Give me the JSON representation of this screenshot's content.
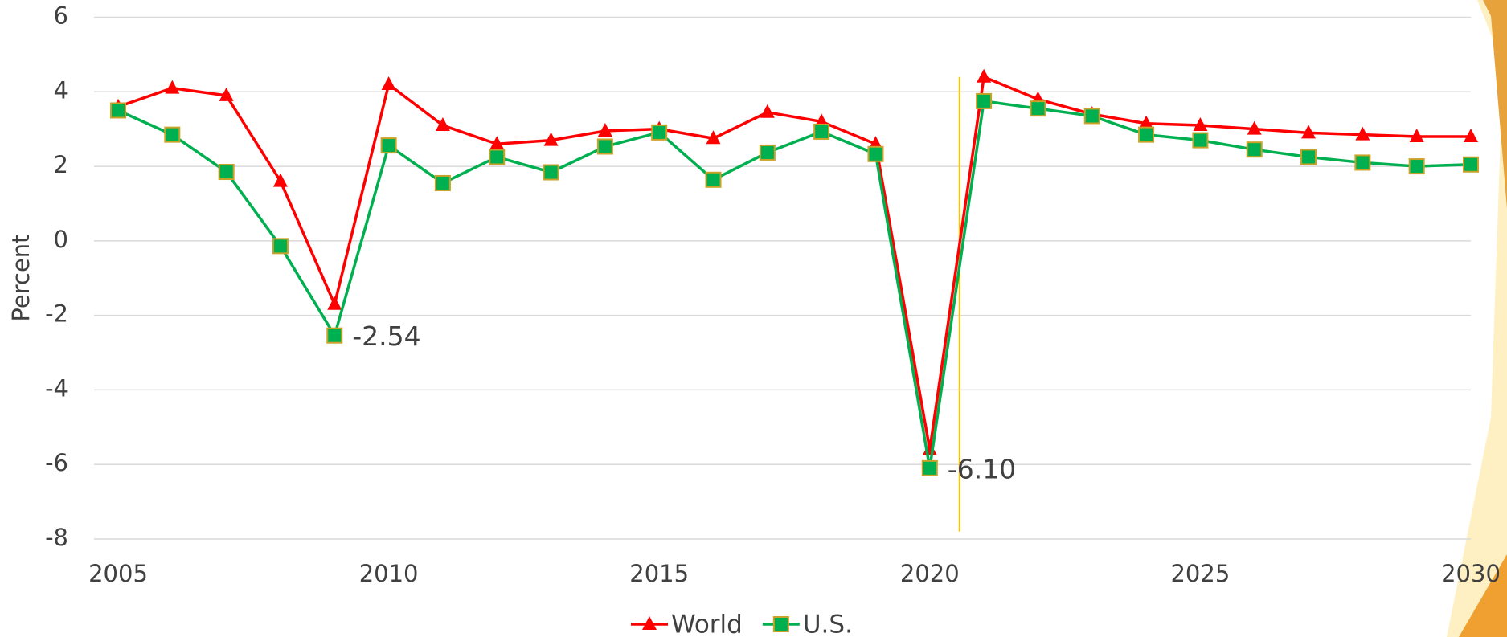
{
  "chart_data": {
    "type": "line",
    "y_label": "Percent",
    "x": [
      2005,
      2006,
      2007,
      2008,
      2009,
      2010,
      2011,
      2012,
      2013,
      2014,
      2015,
      2016,
      2017,
      2018,
      2019,
      2020,
      2021,
      2022,
      2023,
      2024,
      2025,
      2026,
      2027,
      2028,
      2029,
      2030
    ],
    "series": [
      {
        "name": "World",
        "color": "#ff0000",
        "marker": "triangle",
        "values": [
          3.6,
          4.1,
          3.9,
          1.6,
          -1.7,
          4.2,
          3.1,
          2.6,
          2.7,
          2.95,
          3.0,
          2.75,
          3.45,
          3.2,
          2.6,
          -5.6,
          4.4,
          3.8,
          3.4,
          3.15,
          3.1,
          3.0,
          2.9,
          2.85,
          2.8,
          2.8
        ]
      },
      {
        "name": "U.S.",
        "color": "#00b050",
        "marker": "square",
        "marker_edge": "#c9a227",
        "values": [
          3.5,
          2.85,
          1.85,
          -0.14,
          -2.54,
          2.56,
          1.55,
          2.25,
          1.84,
          2.53,
          2.91,
          1.64,
          2.37,
          2.93,
          2.33,
          -6.1,
          3.75,
          3.55,
          3.35,
          2.85,
          2.7,
          2.45,
          2.25,
          2.1,
          2.0,
          2.05
        ],
        "value_labels": [
          null,
          null,
          null,
          null,
          "-2.54",
          null,
          null,
          null,
          null,
          null,
          null,
          null,
          null,
          null,
          null,
          "-6.10",
          null,
          null,
          null,
          null,
          null,
          null,
          null,
          null,
          null,
          null
        ]
      }
    ],
    "xlim": [
      2005,
      2030
    ],
    "xticks": [
      2005,
      2010,
      2015,
      2020,
      2025,
      2030
    ],
    "ylim": [
      -8,
      6
    ],
    "yticks": [
      -8,
      -6,
      -4,
      -2,
      0,
      2,
      4,
      6
    ],
    "grid": true,
    "legend": "bottom",
    "vline": {
      "x": 2020.55,
      "y": [
        -7.8,
        4.4
      ],
      "color": "#ffc000"
    }
  }
}
